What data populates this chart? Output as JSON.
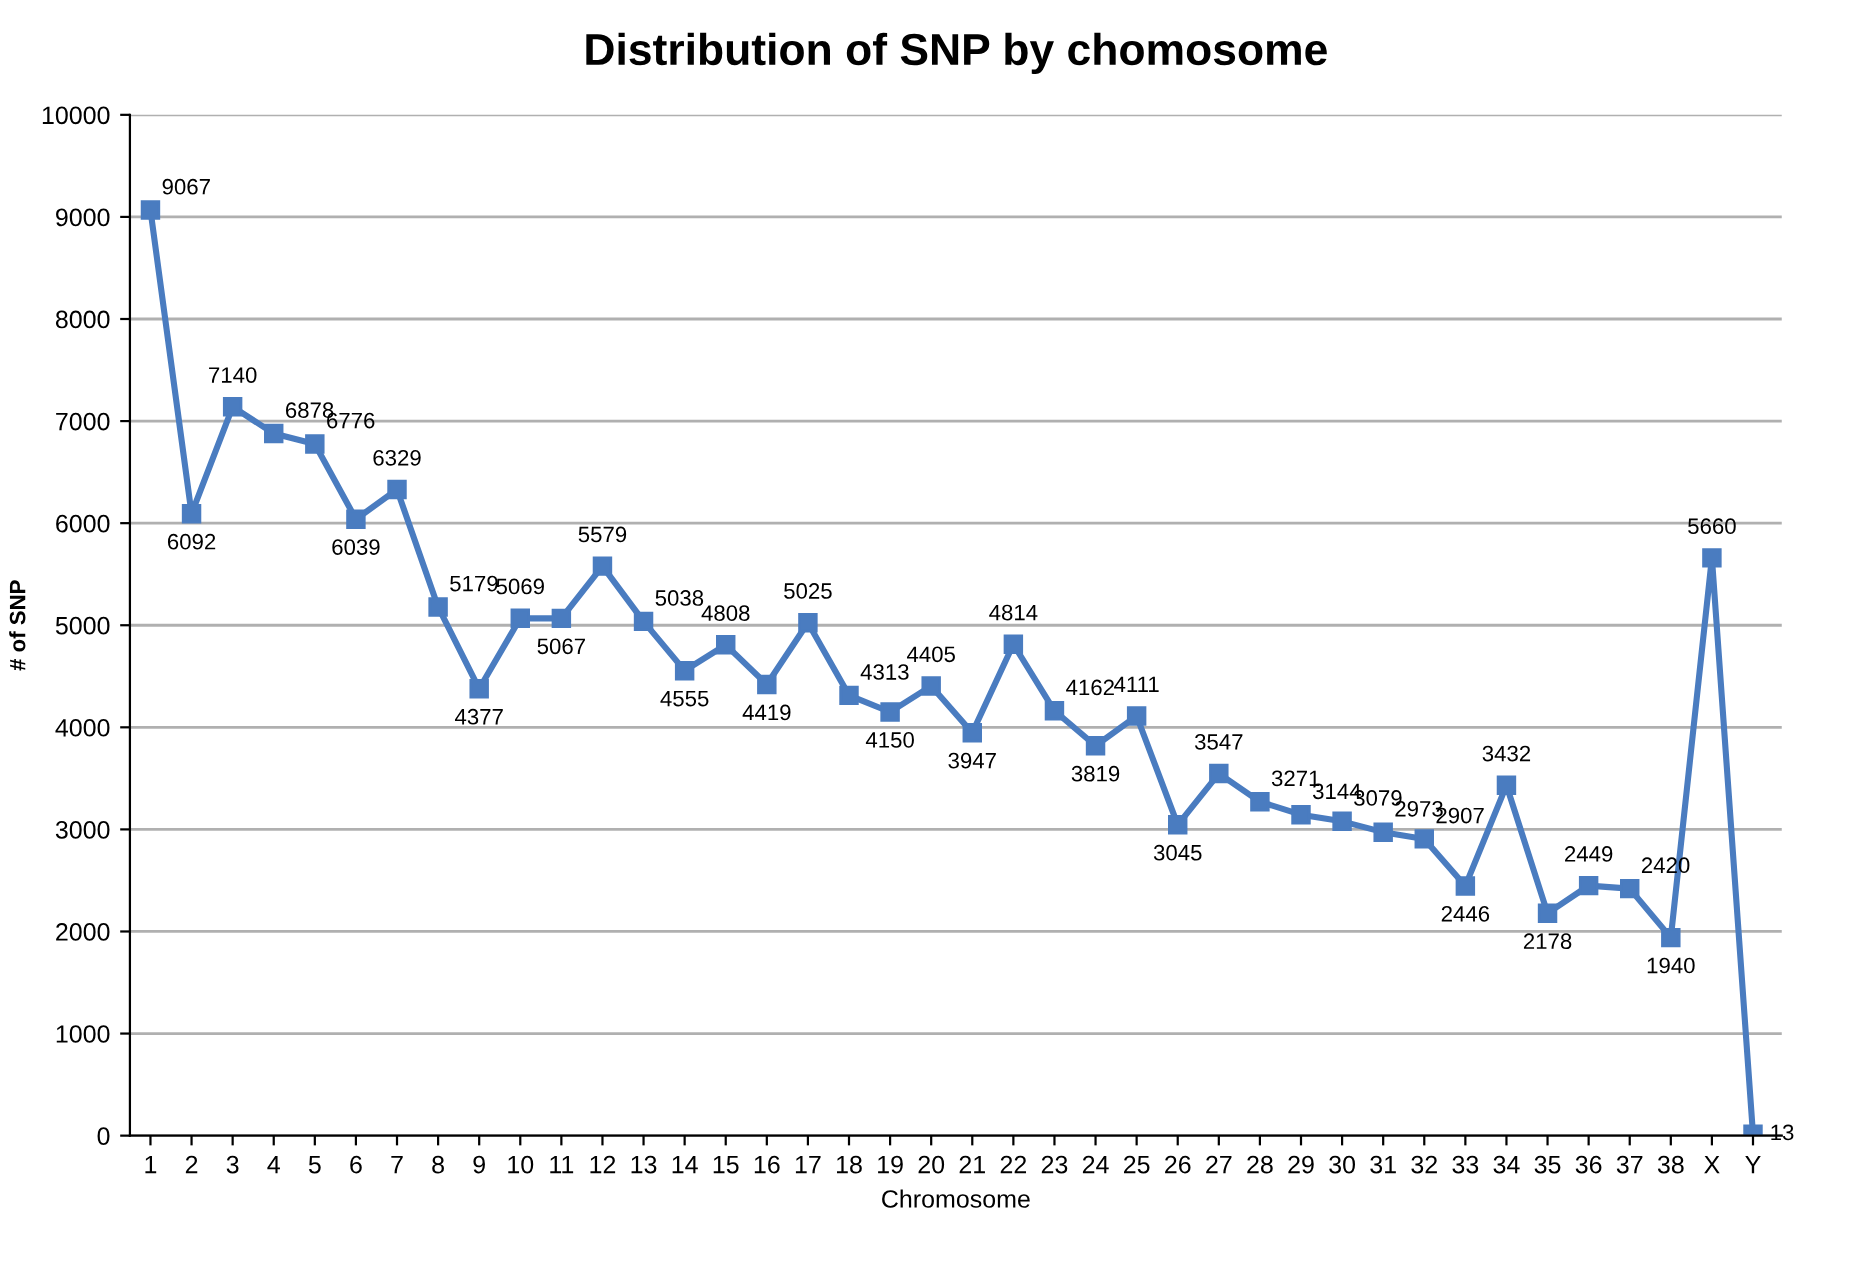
{
  "chart_data": {
    "type": "line",
    "title": "Distribution of SNP by chomosome",
    "xlabel": "Chromosome",
    "ylabel": "# of SNP",
    "categories": [
      "1",
      "2",
      "3",
      "4",
      "5",
      "6",
      "7",
      "8",
      "9",
      "10",
      "11",
      "12",
      "13",
      "14",
      "15",
      "16",
      "17",
      "18",
      "19",
      "20",
      "21",
      "22",
      "23",
      "24",
      "25",
      "26",
      "27",
      "28",
      "29",
      "30",
      "31",
      "32",
      "33",
      "34",
      "35",
      "36",
      "37",
      "38",
      "X",
      "Y"
    ],
    "series": [
      {
        "color": "#4a7cc0",
        "values": [
          9067,
          6092,
          7140,
          6878,
          6776,
          6039,
          6329,
          5179,
          4377,
          5069,
          5067,
          5579,
          5038,
          4555,
          4808,
          4419,
          5025,
          4313,
          4150,
          4405,
          3947,
          4814,
          4162,
          3819,
          4111,
          3045,
          3547,
          3271,
          3144,
          3079,
          2973,
          2907,
          2446,
          3432,
          2178,
          2449,
          2420,
          1940,
          5660,
          13
        ]
      }
    ],
    "ylim": [
      0,
      10000
    ],
    "yticks": [
      0,
      1000,
      2000,
      3000,
      4000,
      5000,
      6000,
      7000,
      8000,
      9000,
      10000
    ],
    "grid": "y",
    "marker": "square",
    "line_style": "solid",
    "data_labels": true,
    "legend": false
  }
}
